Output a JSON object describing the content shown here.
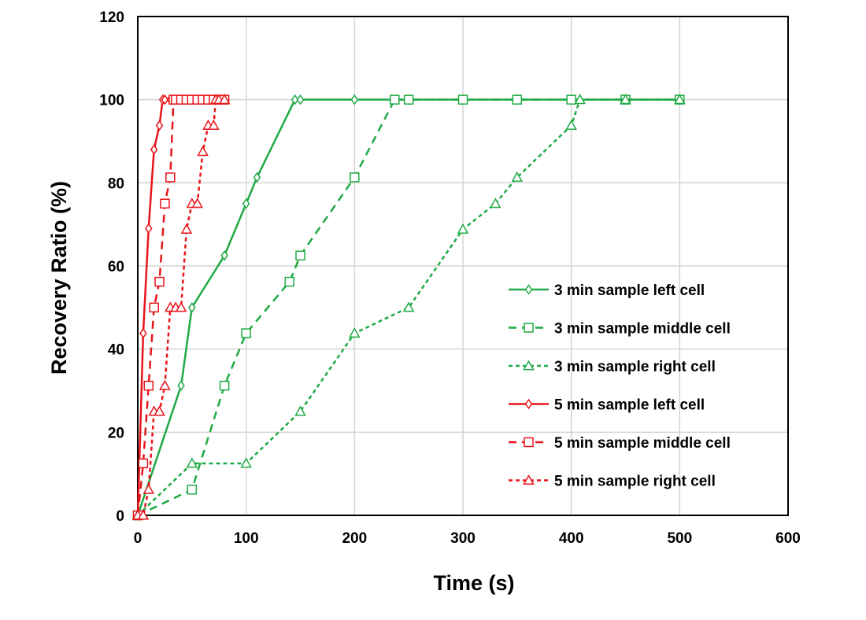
{
  "chart_data": {
    "type": "line",
    "xlabel": "Time (s)",
    "ylabel": "Recovery Ratio (%)",
    "xlim": [
      0,
      600
    ],
    "ylim": [
      0,
      120
    ],
    "xticks": [
      0,
      100,
      200,
      300,
      400,
      500,
      600
    ],
    "yticks": [
      0,
      20,
      40,
      60,
      80,
      100,
      120
    ],
    "grid": true,
    "legend_position": "right",
    "series": [
      {
        "name": "3 min sample left cell",
        "color": "#1faa45",
        "dash": "solid",
        "marker": "diamond",
        "points": [
          [
            0,
            0
          ],
          [
            40,
            31.2
          ],
          [
            50,
            50
          ],
          [
            80,
            62.5
          ],
          [
            100,
            75
          ],
          [
            110,
            81.3
          ],
          [
            145,
            100
          ],
          [
            150,
            100
          ],
          [
            200,
            100
          ],
          [
            250,
            100
          ],
          [
            300,
            100
          ],
          [
            350,
            100
          ],
          [
            400,
            100
          ],
          [
            450,
            100
          ],
          [
            500,
            100
          ]
        ]
      },
      {
        "name": "3 min sample middle cell",
        "color": "#1faa45",
        "dash": "long",
        "marker": "square",
        "points": [
          [
            0,
            0
          ],
          [
            50,
            6.2
          ],
          [
            80,
            31.2
          ],
          [
            100,
            43.8
          ],
          [
            140,
            56.2
          ],
          [
            150,
            62.5
          ],
          [
            200,
            81.3
          ],
          [
            237,
            100
          ],
          [
            250,
            100
          ],
          [
            300,
            100
          ],
          [
            350,
            100
          ],
          [
            400,
            100
          ],
          [
            450,
            100
          ],
          [
            500,
            100
          ]
        ]
      },
      {
        "name": "3 min sample right cell",
        "color": "#1faa45",
        "dash": "short",
        "marker": "triangle",
        "points": [
          [
            0,
            0
          ],
          [
            50,
            12.5
          ],
          [
            100,
            12.5
          ],
          [
            150,
            25
          ],
          [
            200,
            43.8
          ],
          [
            250,
            50
          ],
          [
            300,
            68.8
          ],
          [
            330,
            75
          ],
          [
            350,
            81.3
          ],
          [
            400,
            93.8
          ],
          [
            408,
            100
          ],
          [
            450,
            100
          ],
          [
            500,
            100
          ]
        ]
      },
      {
        "name": "5 min sample left cell",
        "color": "#e8151b",
        "dash": "solid",
        "marker": "diamond",
        "points": [
          [
            0,
            0
          ],
          [
            5,
            43.8
          ],
          [
            10,
            69
          ],
          [
            15,
            88
          ],
          [
            20,
            93.8
          ],
          [
            23,
            100
          ],
          [
            25,
            100
          ],
          [
            30,
            100
          ],
          [
            35,
            100
          ],
          [
            40,
            100
          ],
          [
            45,
            100
          ],
          [
            50,
            100
          ],
          [
            55,
            100
          ],
          [
            60,
            100
          ],
          [
            65,
            100
          ],
          [
            70,
            100
          ],
          [
            75,
            100
          ],
          [
            80,
            100
          ]
        ]
      },
      {
        "name": "5 min sample middle cell",
        "color": "#e8151b",
        "dash": "long",
        "marker": "square",
        "points": [
          [
            0,
            0
          ],
          [
            5,
            12.5
          ],
          [
            10,
            31.2
          ],
          [
            15,
            50
          ],
          [
            20,
            56.2
          ],
          [
            25,
            75
          ],
          [
            30,
            81.3
          ],
          [
            33,
            100
          ],
          [
            35,
            100
          ],
          [
            40,
            100
          ],
          [
            45,
            100
          ],
          [
            50,
            100
          ],
          [
            55,
            100
          ],
          [
            60,
            100
          ],
          [
            65,
            100
          ],
          [
            70,
            100
          ],
          [
            75,
            100
          ],
          [
            80,
            100
          ]
        ]
      },
      {
        "name": "5 min sample right cell",
        "color": "#e8151b",
        "dash": "short",
        "marker": "triangle",
        "points": [
          [
            0,
            0
          ],
          [
            5,
            0
          ],
          [
            10,
            6.2
          ],
          [
            15,
            25
          ],
          [
            20,
            25
          ],
          [
            25,
            31.2
          ],
          [
            30,
            50
          ],
          [
            35,
            50
          ],
          [
            40,
            50
          ],
          [
            45,
            68.8
          ],
          [
            50,
            75
          ],
          [
            55,
            75
          ],
          [
            60,
            87.5
          ],
          [
            65,
            93.8
          ],
          [
            70,
            93.8
          ],
          [
            72,
            100
          ],
          [
            75,
            100
          ],
          [
            80,
            100
          ]
        ]
      }
    ]
  }
}
